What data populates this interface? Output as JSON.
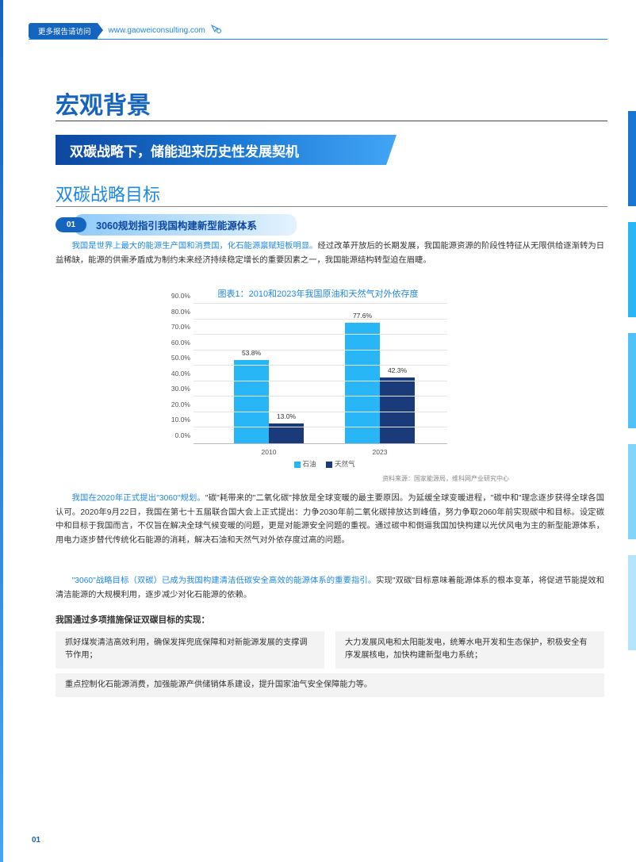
{
  "header": {
    "badge": "更多报告请访问",
    "url": "www.gaoweiconsulting.com"
  },
  "page_title": "宏观背景",
  "ribbon": "双碳战略下，储能迎来历史性发展契机",
  "subsection": "双碳战略目标",
  "pill": {
    "num": "01",
    "text": "3060规划指引我国构建新型能源体系"
  },
  "para1": {
    "hl": "我国是世界上最大的能源生产国和消费国，化石能源禀赋短板明显。",
    "rest": "经过改革开放后的长期发展，我国能源资源的阶段性特征从无限供给逐渐转为日益稀缺，能源的供需矛盾成为制约未来经济持续稳定增长的重要因素之一，我国能源结构转型迫在眉睫。"
  },
  "chart": {
    "title": "图表1：2010和2023年我国原油和天然气对外依存度",
    "type": "bar",
    "ylim": [
      0,
      90
    ],
    "ytick_step": 10,
    "yticks": [
      "0.0%",
      "10.0%",
      "20.0%",
      "30.0%",
      "40.0%",
      "50.0%",
      "60.0%",
      "70.0%",
      "80.0%",
      "90.0%"
    ],
    "categories": [
      "2010",
      "2023"
    ],
    "series": [
      {
        "name": "石油",
        "color": "#29b6f6",
        "values": [
          53.8,
          77.6
        ]
      },
      {
        "name": "天然气",
        "color": "#1a3a7a",
        "values": [
          13.0,
          42.3
        ]
      }
    ],
    "value_labels": [
      [
        "53.8%",
        "13.0%"
      ],
      [
        "77.6%",
        "42.3%"
      ]
    ],
    "grid_color": "#e5e5e5",
    "axis_color": "#bbbbbb",
    "label_fontsize": 8.5,
    "source": "资料来源：国家能源局，维科网产业研究中心"
  },
  "para2": {
    "hl": "我国在2020年正式提出\"3060\"规划。",
    "rest": "\"碳\"耗带来的\"二氧化碳\"排放是全球变暖的最主要原因。为延缓全球变暖进程，\"碳中和\"理念逐步获得全球各国认可。2020年9月22日，我国在第七十五届联合国大会上正式提出：力争2030年前二氧化碳排放达到峰值，努力争取2060年前实现碳中和目标。设定碳中和目标于我国而言，不仅旨在解决全球气候变暖的问题，更是对能源安全问题的重视。通过碳中和倒逼我国加快构建以光伏风电为主的新型能源体系，用电力逐步替代传统化石能源的消耗，解决石油和天然气对外依存度过高的问题。"
  },
  "para3": {
    "hl": "\"3060\"战略目标（双碳）已成为我国构建清洁低碳安全高效的能源体系的重要指引。",
    "rest": "实现\"双碳\"目标意味着能源体系的根本变革，将促进节能提效和清洁能源的大规模利用，逐步减少对化石能源的依赖。"
  },
  "list_head": "我国通过多项措施保证双碳目标的实现：",
  "boxes": {
    "r1c1": "抓好煤炭清洁高效利用，确保发挥兜底保障和对新能源发展的支撑调节作用；",
    "r1c2": "大力发展风电和太阳能发电，统筹水电开发和生态保护，积极安全有序发展核电，加快构建新型电力系统；",
    "r2": "重点控制化石能源消费，加强能源产供储销体系建设，提升国家油气安全保障能力等。"
  },
  "page_num": "01",
  "colors": {
    "primary": "#1565c0",
    "accent": "#1e88e5",
    "ribbon_start": "#0d47a1",
    "ribbon_end": "#42a5f5",
    "box_bg": "#f3f3f3"
  },
  "side_stripes": [
    "#1976d2",
    "#29b6f6",
    "#4fc3f7",
    "#81d4fa",
    "#b3e5fc"
  ]
}
